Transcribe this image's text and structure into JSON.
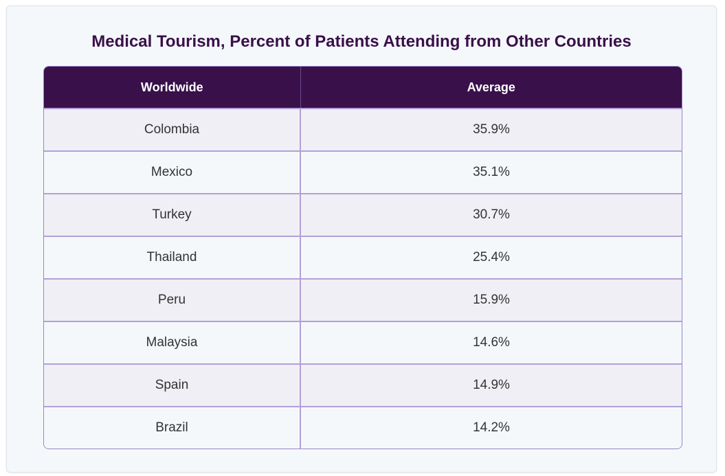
{
  "chart_data": {
    "type": "table",
    "title": "Medical Tourism, Percent of Patients Attending from Other Countries",
    "columns": [
      "Worldwide",
      "Average"
    ],
    "rows": [
      [
        "Colombia",
        "35.9%"
      ],
      [
        "Mexico",
        "35.1%"
      ],
      [
        "Turkey",
        "30.7%"
      ],
      [
        "Thailand",
        "25.4%"
      ],
      [
        "Peru",
        "15.9%"
      ],
      [
        "Malaysia",
        "14.6%"
      ],
      [
        "Spain",
        "14.9%"
      ],
      [
        "Brazil",
        "14.2%"
      ]
    ],
    "values": [
      35.9,
      35.1,
      30.7,
      25.4,
      15.9,
      14.6,
      14.9,
      14.2
    ],
    "colors": {
      "header_bg": "#39104a",
      "title": "#3a0f4a",
      "border": "#b49fd8",
      "row_alt": "#f0eff5",
      "row": "#f4f8fb"
    }
  }
}
